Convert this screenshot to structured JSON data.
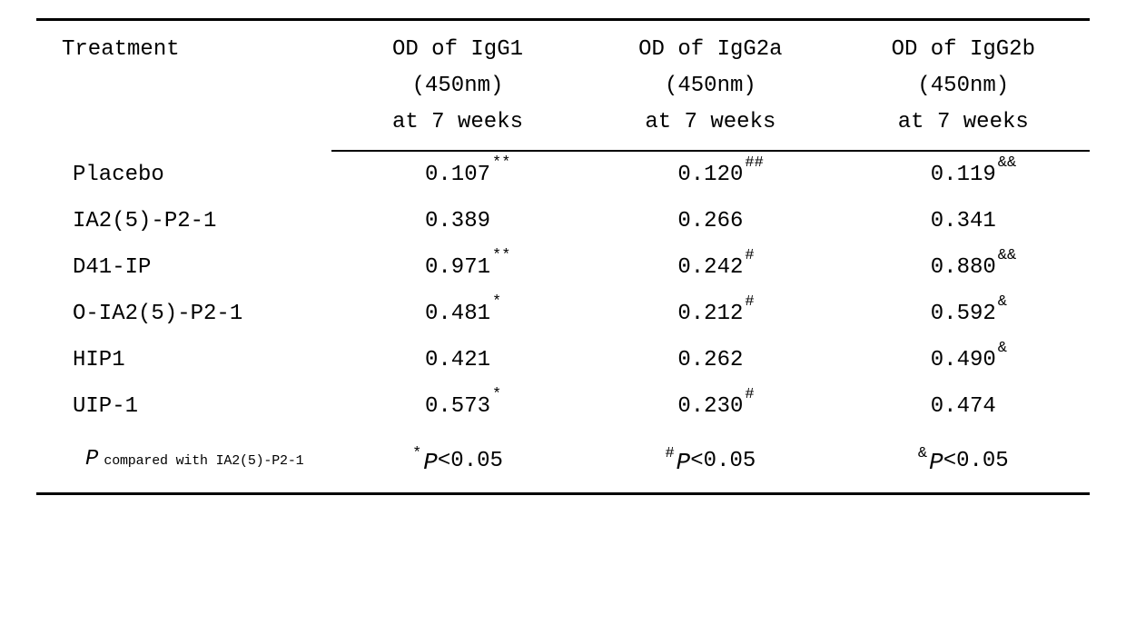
{
  "table": {
    "type": "table",
    "colors": {
      "text": "#000000",
      "background": "#ffffff",
      "rule": "#000000"
    },
    "fonts": {
      "family": "Courier New, monospace",
      "body_size_pt": 18,
      "sup_size_pt": 12,
      "footer_small_pt": 11
    },
    "header": {
      "treatment": "Treatment",
      "cols": [
        {
          "l1": "OD of IgG1",
          "l2": "(450nm)",
          "l3": "at  7 weeks"
        },
        {
          "l1": "OD of IgG2a",
          "l2": "(450nm)",
          "l3": "at  7 weeks"
        },
        {
          "l1": "OD of IgG2b",
          "l2": "(450nm)",
          "l3": "at  7 weeks"
        }
      ]
    },
    "rows": [
      {
        "treatment": "Placebo",
        "v": [
          {
            "n": "0.107",
            "s": "**"
          },
          {
            "n": "0.120",
            "s": "##"
          },
          {
            "n": "0.119",
            "s": "&&"
          }
        ]
      },
      {
        "treatment": "IA2(5)-P2-1",
        "v": [
          {
            "n": "0.389",
            "s": ""
          },
          {
            "n": "0.266",
            "s": ""
          },
          {
            "n": "0.341",
            "s": ""
          }
        ]
      },
      {
        "treatment": "D41-IP",
        "v": [
          {
            "n": "0.971",
            "s": "**"
          },
          {
            "n": "0.242",
            "s": "#"
          },
          {
            "n": "0.880",
            "s": "&&"
          }
        ]
      },
      {
        "treatment": "O-IA2(5)-P2-1",
        "v": [
          {
            "n": "0.481",
            "s": "*"
          },
          {
            "n": "0.212",
            "s": "#"
          },
          {
            "n": "0.592",
            "s": "&"
          }
        ]
      },
      {
        "treatment": "HIP1",
        "v": [
          {
            "n": "0.421",
            "s": ""
          },
          {
            "n": "0.262",
            "s": ""
          },
          {
            "n": "0.490",
            "s": "&"
          }
        ]
      },
      {
        "treatment": "UIP-1",
        "v": [
          {
            "n": "0.573",
            "s": "*"
          },
          {
            "n": "0.230",
            "s": "#"
          },
          {
            "n": "0.474",
            "s": ""
          }
        ]
      }
    ],
    "footer": {
      "label_P": "P",
      "label_small": "compared with IA2(5)-P2-1",
      "cells": [
        {
          "sym": "*",
          "P": "P",
          "rest": "<0.05"
        },
        {
          "sym": "#",
          "P": "P",
          "rest": "<0.05"
        },
        {
          "sym": "&",
          "P": "P",
          "rest": "<0.05"
        }
      ]
    }
  }
}
